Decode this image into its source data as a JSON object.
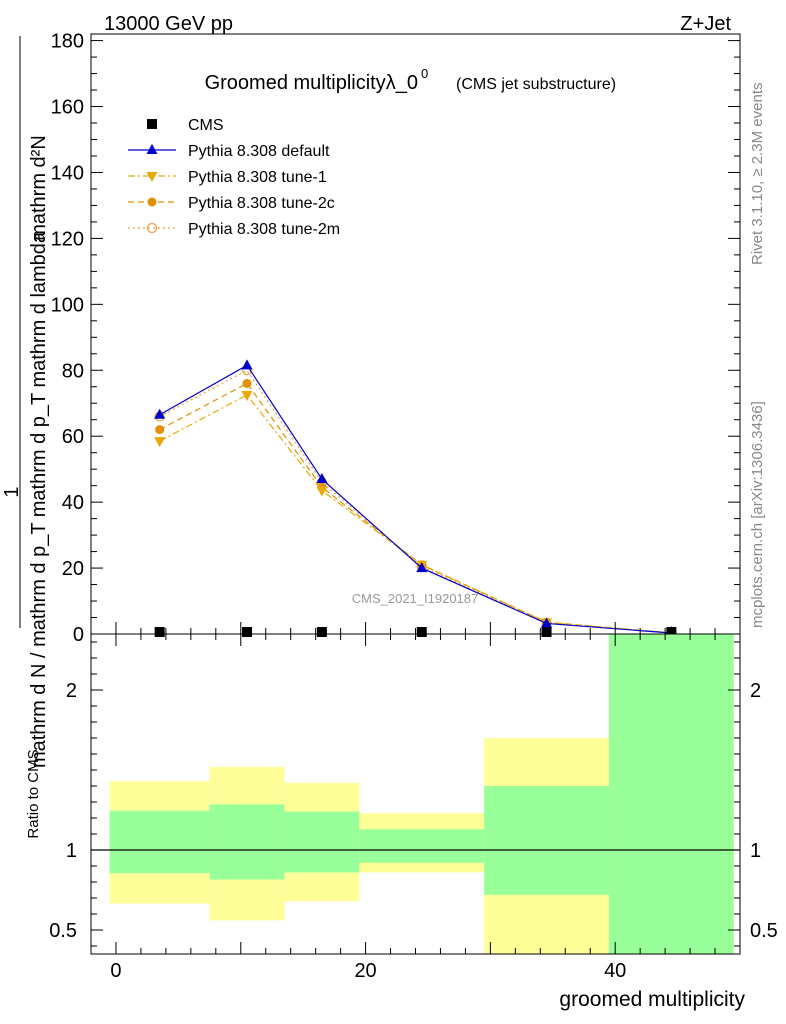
{
  "header": {
    "left": "13000 GeV pp",
    "right": "Z+Jet"
  },
  "side_labels": {
    "rivet": "Rivet 3.1.10, ≥ 2.3M events",
    "mcplots": "mcplots.cern.ch [arXiv:1306.3436]"
  },
  "chart_data": [
    {
      "type": "line",
      "title": "Groomed multiplicityλ_0",
      "title_sup": "0",
      "subtitle": "(CMS jet substructure)",
      "watermark": "CMS_2021_I1920187",
      "ylabel_top": "1",
      "ylabel_numerator": "mathrm d²N",
      "ylabel_denominator": "mathrm d N / mathrm d p_T mathrm d p_T mathrm d lambda",
      "xlim": [
        -2,
        50
      ],
      "ylim": [
        0,
        182
      ],
      "y_ticks": [
        0,
        20,
        40,
        60,
        80,
        100,
        120,
        140,
        160,
        180
      ],
      "y_tick_labels": [
        "0",
        "20",
        "40",
        "60",
        "80",
        "100",
        "120",
        "140",
        "160",
        "180"
      ],
      "legend_position": "top-left",
      "x": [
        3.5,
        10.5,
        16.5,
        24.5,
        34.5,
        44.5
      ],
      "series": [
        {
          "name": "CMS",
          "color": "#000000",
          "marker": "square",
          "style": "none",
          "values": [
            0.3,
            0.3,
            0.3,
            0.3,
            0.3,
            0.3
          ]
        },
        {
          "name": "Pythia 8.308 default",
          "color": "#0000cc",
          "marker": "triangle-up",
          "style": "solid",
          "values": [
            66.5,
            81.5,
            47,
            20,
            3.2,
            0.3
          ]
        },
        {
          "name": "Pythia 8.308 tune-1",
          "color": "#e8a800",
          "marker": "triangle-down",
          "style": "dashdot",
          "values": [
            58.5,
            72.5,
            43.5,
            21,
            3.5,
            0.3
          ]
        },
        {
          "name": "Pythia 8.308 tune-2c",
          "color": "#e09000",
          "marker": "circle",
          "style": "dashed",
          "values": [
            62,
            76,
            44.5,
            21,
            3.6,
            0.3
          ]
        },
        {
          "name": "Pythia 8.308 tune-2m",
          "color": "#e8a040",
          "marker": "circle-open",
          "style": "dotted",
          "values": [
            66,
            80,
            46,
            20.5,
            3.3,
            0.3
          ]
        }
      ]
    },
    {
      "type": "area",
      "ylabel": "Ratio to CMS",
      "xlabel": "groomed multiplicity",
      "xlim": [
        -2,
        50
      ],
      "ylim": [
        0.35,
        2.35
      ],
      "x_ticks": [
        0,
        20,
        40
      ],
      "x_tick_labels": [
        "0",
        "20",
        "40"
      ],
      "y_ticks": [
        0.5,
        1,
        2
      ],
      "y_tick_labels": [
        "0.5",
        "1",
        "2"
      ],
      "reference": 1,
      "bins": [
        {
          "lo": -0.5,
          "hi": 7.5,
          "yellow": [
            0.665,
            1.43
          ],
          "green": [
            0.855,
            1.245
          ]
        },
        {
          "lo": 7.5,
          "hi": 13.5,
          "yellow": [
            0.56,
            1.52
          ],
          "green": [
            0.815,
            1.285
          ]
        },
        {
          "lo": 13.5,
          "hi": 19.5,
          "yellow": [
            0.68,
            1.42
          ],
          "green": [
            0.86,
            1.24
          ]
        },
        {
          "lo": 19.5,
          "hi": 29.5,
          "yellow": [
            0.86,
            1.23
          ],
          "green": [
            0.92,
            1.13
          ]
        },
        {
          "lo": 29.5,
          "hi": 39.5,
          "yellow": [
            0.35,
            1.7
          ],
          "green": [
            0.72,
            1.4
          ]
        },
        {
          "lo": 39.5,
          "hi": 49.5,
          "yellow": [
            0.35,
            2.35
          ],
          "green": [
            0.35,
            2.35
          ]
        }
      ],
      "colors": {
        "yellow": "#ffff99",
        "green": "#99ff99"
      }
    }
  ]
}
